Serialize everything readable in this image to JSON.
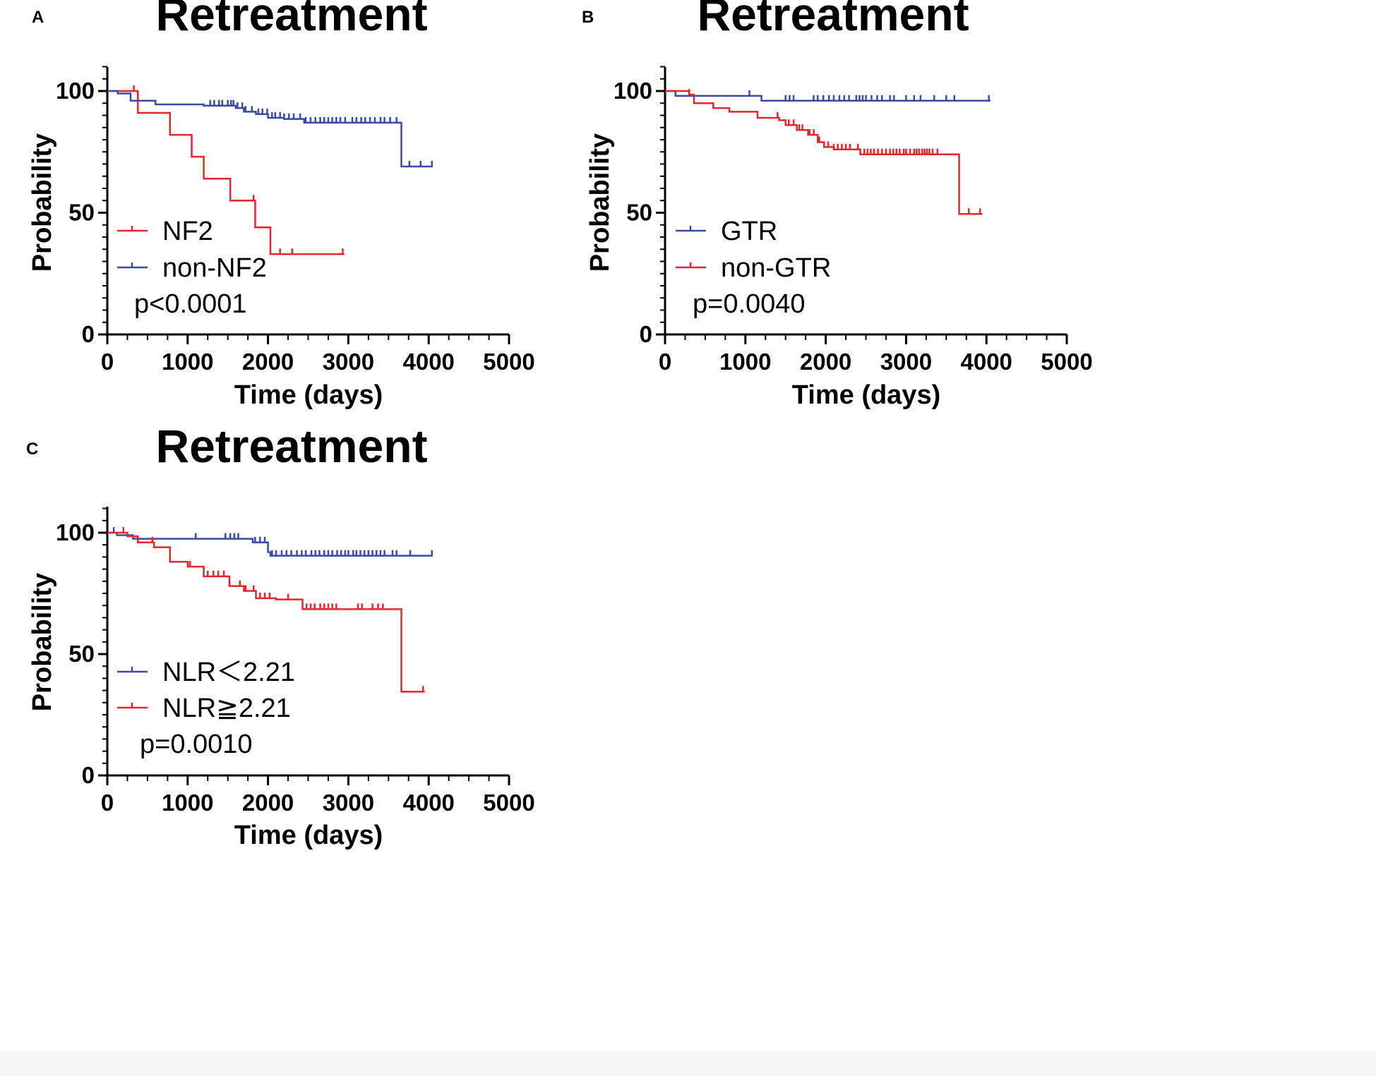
{
  "colors": {
    "red": "#e8252a",
    "blue": "#3b4aa8",
    "axis": "#000000"
  },
  "chart_data": [
    {
      "panel": "A",
      "type": "line",
      "title": "Retreatment",
      "xlabel": "Time (days)",
      "ylabel": "Probability",
      "xlim": [
        0,
        5000
      ],
      "ylim": [
        0,
        110
      ],
      "x_ticks": [
        0,
        1000,
        2000,
        3000,
        4000,
        5000
      ],
      "x_tick_labels": [
        "0",
        "1000",
        "2000",
        "3000",
        "4000",
        "5000"
      ],
      "y_ticks": [
        0,
        50,
        100
      ],
      "y_tick_labels": [
        "0",
        "50",
        "100"
      ],
      "p_value": "p<0.0001",
      "series": [
        {
          "name": "NF2",
          "color": "#e8252a",
          "steps": [
            [
              0,
              100
            ],
            [
              380,
              91
            ],
            [
              780,
              82
            ],
            [
              1050,
              73
            ],
            [
              1200,
              64
            ],
            [
              1530,
              55
            ],
            [
              1840,
              44
            ],
            [
              2030,
              33
            ],
            [
              2950,
              33
            ]
          ],
          "censors": [
            [
              330,
              100
            ],
            [
              1820,
              56
            ],
            [
              2150,
              33
            ],
            [
              2300,
              33
            ],
            [
              2930,
              33
            ]
          ]
        },
        {
          "name": "non-NF2",
          "color": "#3b4aa8",
          "steps": [
            [
              0,
              100
            ],
            [
              130,
              99
            ],
            [
              290,
              96
            ],
            [
              600,
              94.5
            ],
            [
              1200,
              94
            ],
            [
              1600,
              93
            ],
            [
              1700,
              91.5
            ],
            [
              1850,
              90.5
            ],
            [
              2000,
              89
            ],
            [
              2200,
              88.5
            ],
            [
              2450,
              87
            ],
            [
              3650,
              87
            ],
            [
              3660,
              69
            ],
            [
              4050,
              69
            ]
          ],
          "censors": [
            [
              1280,
              95
            ],
            [
              1330,
              95
            ],
            [
              1390,
              95
            ],
            [
              1430,
              95
            ],
            [
              1500,
              95
            ],
            [
              1540,
              95
            ],
            [
              1570,
              95
            ],
            [
              1620,
              94
            ],
            [
              1680,
              93
            ],
            [
              1720,
              92
            ],
            [
              1800,
              91
            ],
            [
              1880,
              90
            ],
            [
              1930,
              90
            ],
            [
              1990,
              89
            ],
            [
              2050,
              89
            ],
            [
              2090,
              89
            ],
            [
              2150,
              89
            ],
            [
              2200,
              89
            ],
            [
              2260,
              89
            ],
            [
              2320,
              89
            ],
            [
              2400,
              89
            ],
            [
              2470,
              87
            ],
            [
              2530,
              87
            ],
            [
              2590,
              87
            ],
            [
              2650,
              87
            ],
            [
              2700,
              87
            ],
            [
              2750,
              87
            ],
            [
              2800,
              87
            ],
            [
              2850,
              87
            ],
            [
              2900,
              87
            ],
            [
              2960,
              87
            ],
            [
              3050,
              87
            ],
            [
              3100,
              87
            ],
            [
              3160,
              87
            ],
            [
              3210,
              87
            ],
            [
              3270,
              87
            ],
            [
              3330,
              87
            ],
            [
              3400,
              87
            ],
            [
              3450,
              87
            ],
            [
              3520,
              87
            ],
            [
              3600,
              87
            ],
            [
              3760,
              70
            ],
            [
              3900,
              70
            ],
            [
              4040,
              70
            ]
          ]
        }
      ]
    },
    {
      "panel": "B",
      "type": "line",
      "title": "Retreatment",
      "xlabel": "Time (days)",
      "ylabel": "Probability",
      "xlim": [
        0,
        5000
      ],
      "ylim": [
        0,
        110
      ],
      "x_ticks": [
        0,
        1000,
        2000,
        3000,
        4000,
        5000
      ],
      "x_tick_labels": [
        "0",
        "1000",
        "2000",
        "3000",
        "4000",
        "5000"
      ],
      "y_ticks": [
        0,
        50,
        100
      ],
      "y_tick_labels": [
        "0",
        "50",
        "100"
      ],
      "p_value": "p=0.0040",
      "series": [
        {
          "name": "GTR",
          "color": "#3b4aa8",
          "steps": [
            [
              0,
              100
            ],
            [
              130,
              98
            ],
            [
              1200,
              98
            ],
            [
              1200,
              96
            ],
            [
              4050,
              96
            ]
          ],
          "censors": [
            [
              1050,
              100
            ],
            [
              1500,
              97
            ],
            [
              1550,
              97
            ],
            [
              1600,
              97
            ],
            [
              1850,
              97
            ],
            [
              1900,
              97
            ],
            [
              1970,
              97
            ],
            [
              2040,
              97
            ],
            [
              2100,
              97
            ],
            [
              2170,
              97
            ],
            [
              2230,
              97
            ],
            [
              2290,
              97
            ],
            [
              2380,
              97
            ],
            [
              2420,
              97
            ],
            [
              2460,
              97
            ],
            [
              2500,
              97
            ],
            [
              2570,
              97
            ],
            [
              2640,
              97
            ],
            [
              2700,
              97
            ],
            [
              2800,
              97
            ],
            [
              2850,
              97
            ],
            [
              3000,
              97
            ],
            [
              3100,
              97
            ],
            [
              3180,
              97
            ],
            [
              3350,
              97
            ],
            [
              3500,
              97
            ],
            [
              3600,
              97
            ],
            [
              4030,
              97
            ]
          ]
        },
        {
          "name": "non-GTR",
          "color": "#e8252a",
          "steps": [
            [
              0,
              100
            ],
            [
              300,
              98.5
            ],
            [
              360,
              95
            ],
            [
              600,
              93
            ],
            [
              800,
              91.5
            ],
            [
              1150,
              89
            ],
            [
              1420,
              88
            ],
            [
              1500,
              86
            ],
            [
              1640,
              84
            ],
            [
              1780,
              82
            ],
            [
              1900,
              79
            ],
            [
              1980,
              77
            ],
            [
              2100,
              76
            ],
            [
              2430,
              74
            ],
            [
              3650,
              74
            ],
            [
              3660,
              49.5
            ],
            [
              3950,
              49.5
            ]
          ],
          "censors": [
            [
              300,
              100
            ],
            [
              1400,
              89
            ],
            [
              1540,
              87
            ],
            [
              1600,
              86
            ],
            [
              1670,
              85
            ],
            [
              1710,
              84
            ],
            [
              1800,
              83
            ],
            [
              1850,
              82
            ],
            [
              1920,
              80
            ],
            [
              2030,
              77
            ],
            [
              2100,
              77
            ],
            [
              2150,
              77
            ],
            [
              2200,
              77
            ],
            [
              2250,
              77
            ],
            [
              2300,
              77
            ],
            [
              2400,
              77
            ],
            [
              2480,
              75
            ],
            [
              2520,
              75
            ],
            [
              2560,
              75
            ],
            [
              2600,
              75
            ],
            [
              2650,
              75
            ],
            [
              2700,
              75
            ],
            [
              2750,
              75
            ],
            [
              2800,
              75
            ],
            [
              2840,
              75
            ],
            [
              2880,
              75
            ],
            [
              2920,
              75
            ],
            [
              2970,
              75
            ],
            [
              3000,
              75
            ],
            [
              3050,
              75
            ],
            [
              3100,
              75
            ],
            [
              3130,
              75
            ],
            [
              3160,
              75
            ],
            [
              3200,
              75
            ],
            [
              3230,
              75
            ],
            [
              3260,
              75
            ],
            [
              3290,
              75
            ],
            [
              3330,
              75
            ],
            [
              3390,
              75
            ],
            [
              3780,
              50.5
            ],
            [
              3920,
              50.5
            ]
          ]
        }
      ]
    },
    {
      "panel": "C",
      "type": "line",
      "title": "Retreatment",
      "xlabel": "Time (days)",
      "ylabel": "Probability",
      "xlim": [
        0,
        5000
      ],
      "ylim": [
        0,
        110
      ],
      "x_ticks": [
        0,
        1000,
        2000,
        3000,
        4000,
        5000
      ],
      "x_tick_labels": [
        "0",
        "1000",
        "2000",
        "3000",
        "4000",
        "5000"
      ],
      "y_ticks": [
        0,
        50,
        100
      ],
      "y_tick_labels": [
        "0",
        "50",
        "100"
      ],
      "p_value": "p=0.0010",
      "series": [
        {
          "name": "NLR＜2.21",
          "color": "#3b4aa8",
          "steps": [
            [
              0,
              100
            ],
            [
              120,
              99
            ],
            [
              320,
              97.5
            ],
            [
              1800,
              97.5
            ],
            [
              1810,
              96
            ],
            [
              2000,
              92
            ],
            [
              2030,
              90.5
            ],
            [
              4050,
              90.5
            ]
          ],
          "censors": [
            [
              80,
              100
            ],
            [
              1100,
              98.5
            ],
            [
              1470,
              98.5
            ],
            [
              1530,
              98.5
            ],
            [
              1580,
              98.5
            ],
            [
              1630,
              98.5
            ],
            [
              1840,
              97
            ],
            [
              1900,
              95
            ],
            [
              1960,
              94
            ],
            [
              2050,
              92
            ],
            [
              2100,
              92
            ],
            [
              2170,
              92
            ],
            [
              2230,
              92
            ],
            [
              2290,
              92
            ],
            [
              2360,
              92
            ],
            [
              2420,
              92
            ],
            [
              2470,
              92
            ],
            [
              2540,
              92
            ],
            [
              2590,
              92
            ],
            [
              2640,
              92
            ],
            [
              2700,
              92
            ],
            [
              2750,
              92
            ],
            [
              2800,
              92
            ],
            [
              2860,
              92
            ],
            [
              2910,
              92
            ],
            [
              2960,
              92
            ],
            [
              3000,
              92
            ],
            [
              3060,
              92
            ],
            [
              3100,
              92
            ],
            [
              3150,
              92
            ],
            [
              3200,
              92
            ],
            [
              3250,
              92
            ],
            [
              3300,
              92
            ],
            [
              3350,
              92
            ],
            [
              3400,
              92
            ],
            [
              3450,
              92
            ],
            [
              3550,
              92
            ],
            [
              3600,
              92
            ],
            [
              3770,
              92
            ],
            [
              4040,
              91.5
            ]
          ]
        },
        {
          "name": "NLR≧2.21",
          "color": "#e8252a",
          "steps": [
            [
              0,
              100
            ],
            [
              250,
              98.5
            ],
            [
              380,
              96
            ],
            [
              580,
              94
            ],
            [
              780,
              88
            ],
            [
              1000,
              86
            ],
            [
              1200,
              82
            ],
            [
              1520,
              78
            ],
            [
              1700,
              76
            ],
            [
              1850,
              73
            ],
            [
              2100,
              72.5
            ],
            [
              2430,
              68.5
            ],
            [
              3650,
              68.5
            ],
            [
              3660,
              34.5
            ],
            [
              3950,
              34.5
            ]
          ],
          "censors": [
            [
              200,
              100
            ],
            [
              560,
              95
            ],
            [
              1030,
              87
            ],
            [
              1250,
              83
            ],
            [
              1320,
              83
            ],
            [
              1380,
              83
            ],
            [
              1450,
              83
            ],
            [
              1520,
              83
            ],
            [
              1650,
              79
            ],
            [
              1720,
              77
            ],
            [
              1820,
              75
            ],
            [
              1900,
              74
            ],
            [
              1960,
              73
            ],
            [
              2020,
              73
            ],
            [
              2250,
              73
            ],
            [
              2480,
              70
            ],
            [
              2530,
              70
            ],
            [
              2580,
              70
            ],
            [
              2650,
              70
            ],
            [
              2700,
              70
            ],
            [
              2750,
              70
            ],
            [
              2800,
              70
            ],
            [
              2850,
              70
            ],
            [
              3120,
              70
            ],
            [
              3170,
              70
            ],
            [
              3300,
              70
            ],
            [
              3370,
              70
            ],
            [
              3430,
              70
            ],
            [
              3930,
              35.5
            ]
          ]
        }
      ]
    }
  ]
}
